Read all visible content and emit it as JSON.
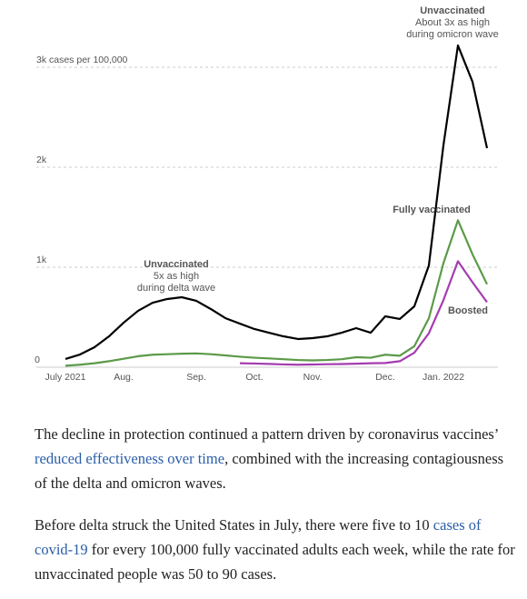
{
  "chart_data": {
    "type": "line",
    "categories": [
      "July 2021",
      null,
      null,
      null,
      "Aug.",
      null,
      null,
      null,
      null,
      "Sep.",
      null,
      null,
      null,
      "Oct.",
      null,
      null,
      null,
      "Nov.",
      null,
      null,
      null,
      null,
      "Dec.",
      null,
      null,
      null,
      "Jan. 2022",
      null,
      null,
      null
    ],
    "series": [
      {
        "name": "Unvaccinated",
        "color": "#000000",
        "values": [
          82,
          127,
          200,
          309,
          445,
          564,
          645,
          682,
          700,
          664,
          582,
          491,
          436,
          382,
          345,
          309,
          282,
          291,
          309,
          345,
          391,
          345,
          509,
          482,
          609,
          1018,
          2218,
          3218,
          2855,
          2191
        ]
      },
      {
        "name": "Fully vaccinated",
        "color": "#5b9a48",
        "values": [
          15,
          25,
          40,
          60,
          85,
          110,
          125,
          130,
          135,
          138,
          130,
          118,
          105,
          95,
          88,
          80,
          72,
          68,
          72,
          80,
          100,
          95,
          125,
          115,
          210,
          490,
          1040,
          1470,
          1130,
          830
        ]
      },
      {
        "name": "Boosted",
        "color": "#a43caf",
        "values": [
          null,
          null,
          null,
          null,
          null,
          null,
          null,
          null,
          null,
          null,
          null,
          null,
          40,
          37,
          33,
          28,
          25,
          27,
          30,
          32,
          35,
          40,
          42,
          60,
          145,
          340,
          670,
          1060,
          850,
          650
        ]
      }
    ],
    "annotations": [
      "About 3x as high",
      "during omicron wave",
      "Unvaccinated",
      "5x as high",
      "during delta wave"
    ],
    "ylim": [
      0,
      3600
    ],
    "yticks": [
      0,
      {
        "value": 1000,
        "label": "1k"
      },
      {
        "value": 2000,
        "label": "2k"
      },
      {
        "value": 3000,
        "label": "3k cases per 100,000"
      }
    ],
    "grid": true
  },
  "paragraphs": [
    [
      "The decline in protection continued a pattern driven by coronavirus vaccines’ ",
      "reduced effectiveness over time",
      ", combined with the increasing contagiousness of the delta and omicron waves."
    ],
    [
      "Before delta struck the United States in July, there were five to 10 ",
      "cases of covid-19",
      " for every 100,000 fully vaccinated adults each week, while the rate for unvaccinated people was 50 to 90 cases."
    ]
  ]
}
